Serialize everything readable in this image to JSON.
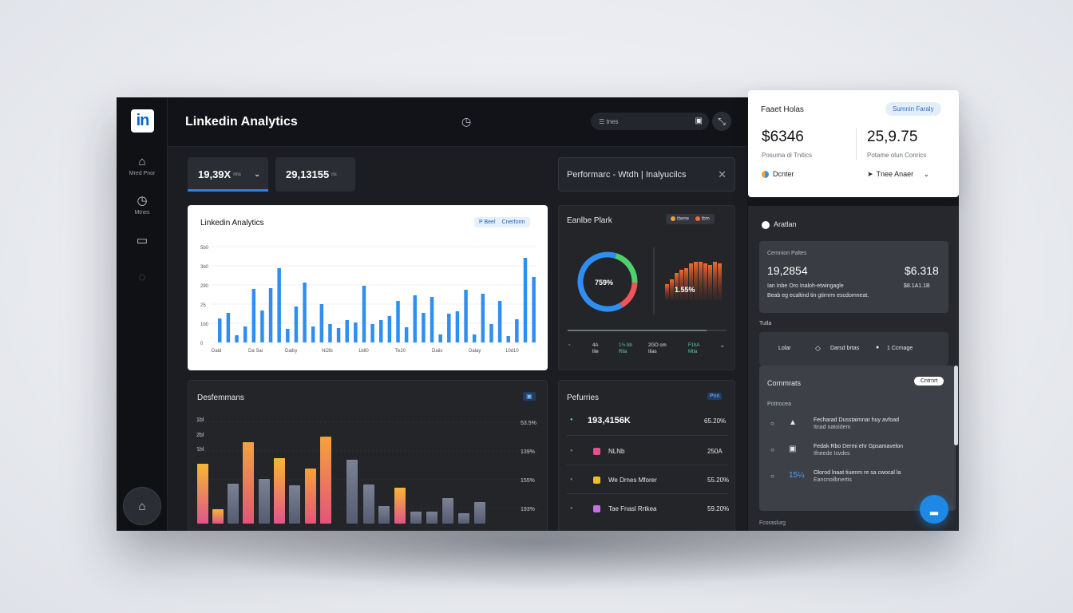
{
  "app": {
    "title": "Linkedin Analytics",
    "logo_text": "in"
  },
  "sidebar": {
    "items": [
      {
        "icon": "person-icon",
        "glyph": "⌂",
        "label": "Mred Pnor"
      },
      {
        "icon": "clock-icon",
        "glyph": "◷",
        "label": "Mtnes"
      },
      {
        "icon": "folder-icon",
        "glyph": "▭",
        "label": ""
      },
      {
        "icon": "circle-icon",
        "glyph": "◌",
        "label": ""
      }
    ],
    "bottom_glyph": "⌂"
  },
  "header": {
    "clock_glyph": "◷",
    "search_placeholder": "☰  tnes",
    "search_icon": "▣",
    "avatar_glyph": "⤡"
  },
  "stats": {
    "pill1_value": "19,39X",
    "pill1_unit": "nns",
    "pill1_chev": "⌄",
    "pill2_value": "29,13155",
    "pill2_unit": "ns"
  },
  "performance_tab": {
    "label": "Performarc - Wtdh  |  Inalyucilcs",
    "close": "✕"
  },
  "main_chart": {
    "title": "Linkedin Analytics",
    "tag_left": "P Beel",
    "tag_right": "Cnerform",
    "y_ticks": [
      "5b0",
      "3b0",
      "290",
      "25",
      "1b0",
      "0"
    ],
    "x_ticks": [
      "Daid",
      "Da Sai",
      "Daiby",
      "Ni2lb",
      "1bli0",
      "Te20",
      "Daiis",
      "Dalay",
      "10d10"
    ]
  },
  "donut_card": {
    "title": "Eanlbe Plark",
    "legend1": "tbene",
    "legend2": "tbm",
    "donut_value": "759%",
    "bars_value": "1.55%",
    "bottom_stats": [
      "4A\nlite",
      "1½ bb\nRila",
      "2GO om\nIlias",
      "F1hA\nMtla"
    ],
    "bottom_left": "◦",
    "bottom_right": "⌄"
  },
  "perf_chart": {
    "title": "Desfemmans",
    "icon": "▣",
    "y_left": [
      "1bl",
      "2bl",
      "1bl"
    ],
    "y_right": [
      "53.5%",
      "139%",
      "155%",
      "193%"
    ]
  },
  "perf_list": {
    "title": "Pefurries",
    "tag": "Pnn",
    "headline_value": "193,4156K",
    "headline_pct": "65.20%",
    "rows": [
      {
        "label": "NLNb",
        "value": "250A",
        "color": "#e94f8f"
      },
      {
        "label": "We Drnes Mforer",
        "value": "55.20%",
        "color": "#f4b933"
      },
      {
        "label": "Tae Fnasl Rrtkea",
        "value": "59.20%",
        "color": "#c86ee4"
      }
    ]
  },
  "right_top": {
    "title": "Faaet Holas",
    "badge": "Sumnin Faraly",
    "big_left": "$6346",
    "big_right": "25,9.75",
    "sub_left": "Posuma di Tnitics",
    "sub_right": "Potame olun Conrics",
    "row_left": "Dcnter",
    "row_right": "Tnee Anaer",
    "row_right_chev": "⌄"
  },
  "right_dark": {
    "section_title": "Aratlan",
    "metric_label": "Cemnion Paltes",
    "metric_left": "19,2854",
    "metric_right": "$6.318",
    "metric_desc1": "Ian Inbe Oro Inaloh-etwingagle",
    "metric_desc2": "Beab eg ecaltind tin gtirnrm escdomneat.",
    "metric_right_sub": "$8.1A1.1B",
    "tabs_label": "Tutla",
    "filter_left": "Lolar",
    "filter_mid": "Darsd brtas",
    "filter_right": "1 Ccrnage",
    "comments_title": "Cornmrats",
    "comments_button": "Cntrnrt",
    "comments_sub": "Pottrocea",
    "comments": [
      {
        "icon": "▲",
        "text1": "Fecharad Dusstaimnar huy avfoad",
        "text2": "Itnad natoidem"
      },
      {
        "icon": "▣",
        "text1": "Fedak Rbo Dermi ehr Gpsamavelon",
        "text2": "Ifneede Isvdes"
      },
      {
        "icon": "15¼",
        "text1": "Olorod lnaat tiuenm re sa cwocal la",
        "text2": "Eancnoilbnertis"
      }
    ],
    "footer": "Fcoraslurg"
  },
  "colors": {
    "accent": "#2f8ff0",
    "donut_blue": "#2f8ff0",
    "donut_green": "#4fd06c",
    "donut_red": "#f0555a"
  },
  "fab_glyph": "▂"
}
